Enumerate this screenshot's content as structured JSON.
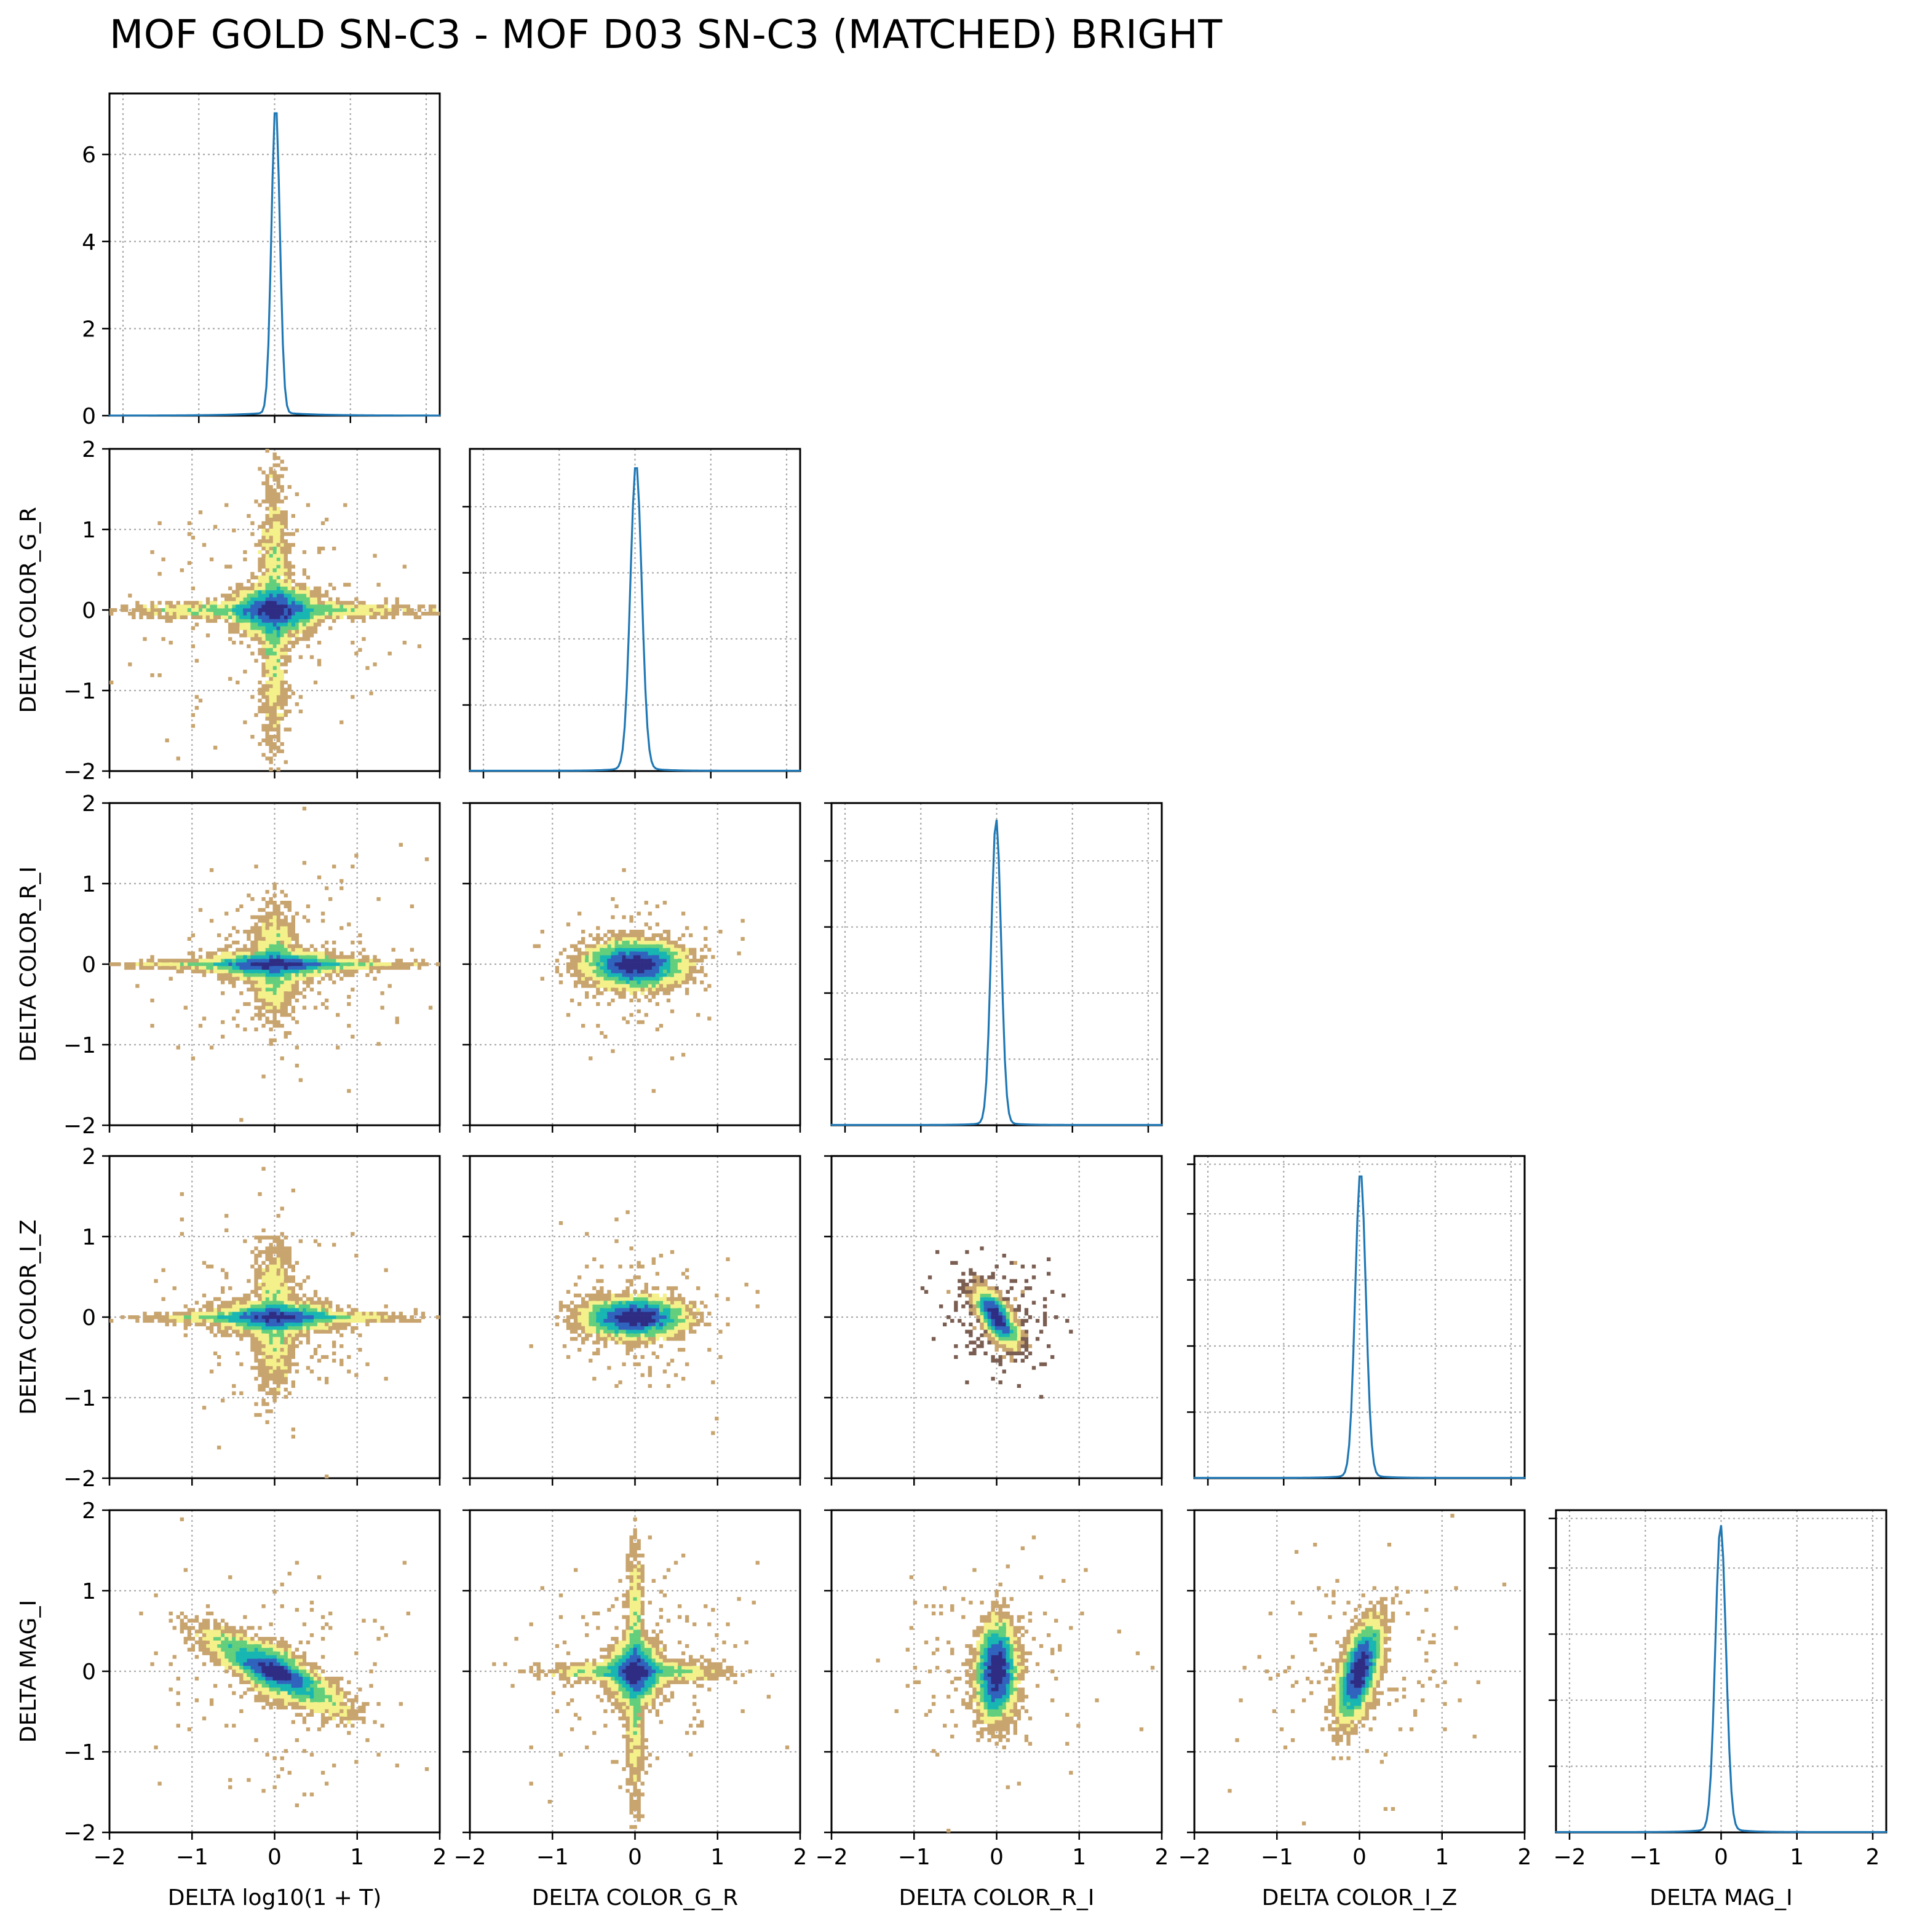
{
  "chart_data": {
    "type": "corner",
    "title": "MOF GOLD SN-C3 - MOF D03 SN-C3 (MATCHED) BRIGHT",
    "variables": [
      "DELTA log10(1 + T)",
      "DELTA COLOR_G_R",
      "DELTA COLOR_R_I",
      "DELTA COLOR_I_Z",
      "DELTA MAG_I"
    ],
    "range": [
      -2,
      2
    ],
    "ticks": [
      -2,
      -1,
      0,
      1,
      2
    ],
    "tick_labels": [
      "−2",
      "−1",
      "0",
      "1",
      "2"
    ],
    "grid": true,
    "colormap": [
      "#2f2c84",
      "#2f63bd",
      "#18b6b2",
      "#63cf7c",
      "#f4f08a",
      "#c8a46e",
      "#7b5e52"
    ],
    "histogram_color": "#1f77b4",
    "diagonal": [
      {
        "variable": "DELTA log10(1 + T)",
        "ylim": [
          0,
          7.4
        ],
        "yticks": [
          0,
          2,
          4,
          6
        ],
        "ytick_labels": [
          "0",
          "2",
          "4",
          "6"
        ],
        "shape": {
          "center": 0.0,
          "peak": 7.08,
          "inner_width": 0.055,
          "wing_amp": 0.36,
          "wing_width": 0.46
        }
      },
      {
        "variable": "DELTA COLOR_G_R",
        "ylim": [
          0,
          1.95
        ],
        "yticks": [
          0.4,
          0.8,
          1.2,
          1.6
        ],
        "ytick_labels": [],
        "shape": {
          "center": 0.0,
          "peak": 1.83,
          "inner_width": 0.075,
          "wing_amp": 0.15,
          "wing_width": 0.21
        }
      },
      {
        "variable": "DELTA COLOR_R_I",
        "ylim": [
          0,
          1.95
        ],
        "yticks": [
          0.4,
          0.8,
          1.2,
          1.6,
          1.95
        ],
        "ytick_labels": [],
        "shape": {
          "center": -0.02,
          "peak": 1.83,
          "inner_width": 0.065,
          "wing_amp": 0.12,
          "wing_width": 0.18
        }
      },
      {
        "variable": "DELTA COLOR_I_Z",
        "ylim": [
          0,
          1.95
        ],
        "yticks": [
          0.4,
          0.8,
          1.2,
          1.6,
          1.9
        ],
        "ytick_labels": [],
        "shape": {
          "center": 0.0,
          "peak": 1.83,
          "inner_width": 0.07,
          "wing_amp": 0.14,
          "wing_width": 0.2
        }
      },
      {
        "variable": "DELTA MAG_I",
        "ylim": [
          0,
          1.95
        ],
        "yticks": [
          0.4,
          0.8,
          1.2,
          1.6,
          1.9
        ],
        "ytick_labels": [],
        "shape": {
          "center": -0.02,
          "peak": 1.83,
          "inner_width": 0.07,
          "wing_amp": 0.16,
          "wing_width": 0.21
        }
      }
    ],
    "pairs": [
      {
        "row": 1,
        "col": 0,
        "x": "DELTA log10(1 + T)",
        "y": "DELTA COLOR_G_R",
        "style": "cross",
        "sx": 0.21,
        "sy": 0.13,
        "cross_x": 0.72,
        "cross_y": 0.72,
        "rho": 0.0,
        "slope": 0.0,
        "spread": 0.22
      },
      {
        "row": 2,
        "col": 0,
        "x": "DELTA log10(1 + T)",
        "y": "DELTA COLOR_R_I",
        "style": "cross",
        "sx": 0.33,
        "sy": 0.07,
        "cross_x": 0.72,
        "cross_y": 0.28,
        "rho": 0.0,
        "slope": 0.0,
        "spread": 0.18
      },
      {
        "row": 2,
        "col": 1,
        "x": "DELTA COLOR_G_R",
        "y": "DELTA COLOR_R_I",
        "style": "blob",
        "sx": 0.24,
        "sy": 0.12,
        "cross_x": 0.18,
        "cross_y": 0.12,
        "rho": 0.0,
        "slope": 0.0,
        "spread": 0.12
      },
      {
        "row": 3,
        "col": 0,
        "x": "DELTA log10(1 + T)",
        "y": "DELTA COLOR_I_Z",
        "style": "cross",
        "sx": 0.3,
        "sy": 0.08,
        "cross_x": 0.62,
        "cross_y": 0.38,
        "rho": 0.0,
        "slope": 0.0,
        "spread": 0.17
      },
      {
        "row": 3,
        "col": 1,
        "x": "DELTA COLOR_G_R",
        "y": "DELTA COLOR_I_Z",
        "style": "blob",
        "sx": 0.25,
        "sy": 0.1,
        "cross_x": 0.28,
        "cross_y": 0.16,
        "rho": 0.0,
        "slope": 0.0,
        "spread": 0.13
      },
      {
        "row": 3,
        "col": 2,
        "x": "DELTA COLOR_R_I",
        "y": "DELTA COLOR_I_Z",
        "style": "blob",
        "sx": 0.1,
        "sy": 0.12,
        "cross_x": 0.07,
        "cross_y": 0.09,
        "rho": -0.55,
        "slope": -0.7,
        "spread": 0.1
      },
      {
        "row": 4,
        "col": 0,
        "x": "DELTA log10(1 + T)",
        "y": "DELTA MAG_I",
        "style": "cross",
        "sx": 0.36,
        "sy": 0.16,
        "cross_x": 0.24,
        "cross_y": 0.14,
        "rho": -0.72,
        "slope": -0.55,
        "spread": 0.2
      },
      {
        "row": 4,
        "col": 1,
        "x": "DELTA COLOR_G_R",
        "y": "DELTA MAG_I",
        "style": "cross",
        "sx": 0.13,
        "sy": 0.16,
        "cross_x": 0.42,
        "cross_y": 0.68,
        "rho": 0.0,
        "slope": 0.0,
        "spread": 0.2
      },
      {
        "row": 4,
        "col": 2,
        "x": "DELTA COLOR_R_I",
        "y": "DELTA MAG_I",
        "style": "blob",
        "sx": 0.1,
        "sy": 0.25,
        "cross_x": 0.08,
        "cross_y": 0.34,
        "rho": 0.08,
        "slope": 0.0,
        "spread": 0.16
      },
      {
        "row": 4,
        "col": 3,
        "x": "DELTA COLOR_I_Z",
        "y": "DELTA MAG_I",
        "style": "blob",
        "sx": 0.11,
        "sy": 0.24,
        "cross_x": 0.08,
        "cross_y": 0.36,
        "rho": 0.5,
        "slope": 0.65,
        "spread": 0.2
      }
    ]
  }
}
